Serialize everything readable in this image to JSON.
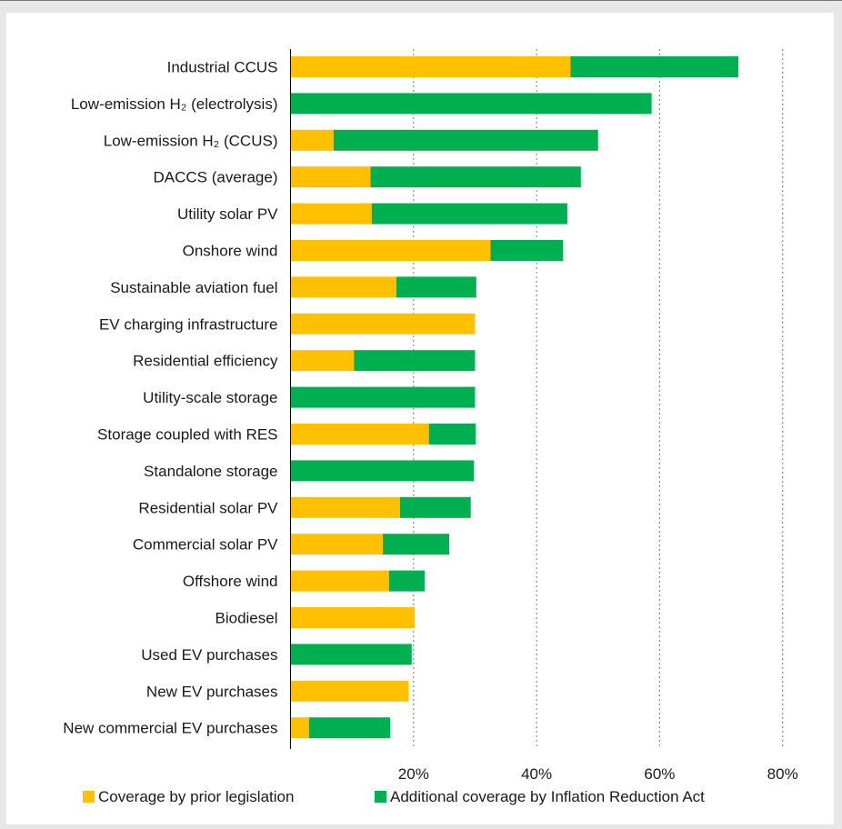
{
  "chart_data": {
    "type": "bar",
    "orientation": "horizontal",
    "stacked": true,
    "categories": [
      "Industrial CCUS",
      "Low-emission H₂ (electrolysis)",
      "Low-emission H₂ (CCUS)",
      "DACCS (average)",
      "Utility solar PV",
      "Onshore wind",
      "Sustainable aviation fuel",
      "EV charging infrastructure",
      "Residential efficiency",
      "Utility-scale storage",
      "Storage coupled with RES",
      "Standalone storage",
      "Residential solar PV",
      "Commercial solar PV",
      "Offshore wind",
      "Biodiesel",
      "Used EV purchases",
      "New EV purchases",
      "New commercial EV purchases"
    ],
    "series": [
      {
        "name": "Coverage by prior legislation",
        "color": "#FFC000",
        "values": [
          45.5,
          0,
          7,
          13,
          13.2,
          32.5,
          17.2,
          30,
          10.3,
          0,
          22.5,
          0,
          17.8,
          15,
          16,
          20.2,
          0,
          19.2,
          3
        ]
      },
      {
        "name": "Additional coverage by Inflation Reduction Act",
        "color": "#00B050",
        "values": [
          27.3,
          58.7,
          43,
          34.2,
          31.8,
          11.8,
          13,
          0,
          19.7,
          30,
          7.6,
          29.8,
          11.5,
          10.8,
          5.8,
          0,
          19.7,
          0,
          13.2
        ]
      }
    ],
    "xlim": [
      0,
      80
    ],
    "xticks": [
      20,
      40,
      60,
      80
    ],
    "xtick_labels": [
      "20%",
      "40%",
      "60%",
      "80%"
    ],
    "grid": "vertical dotted",
    "legend_position": "bottom"
  }
}
